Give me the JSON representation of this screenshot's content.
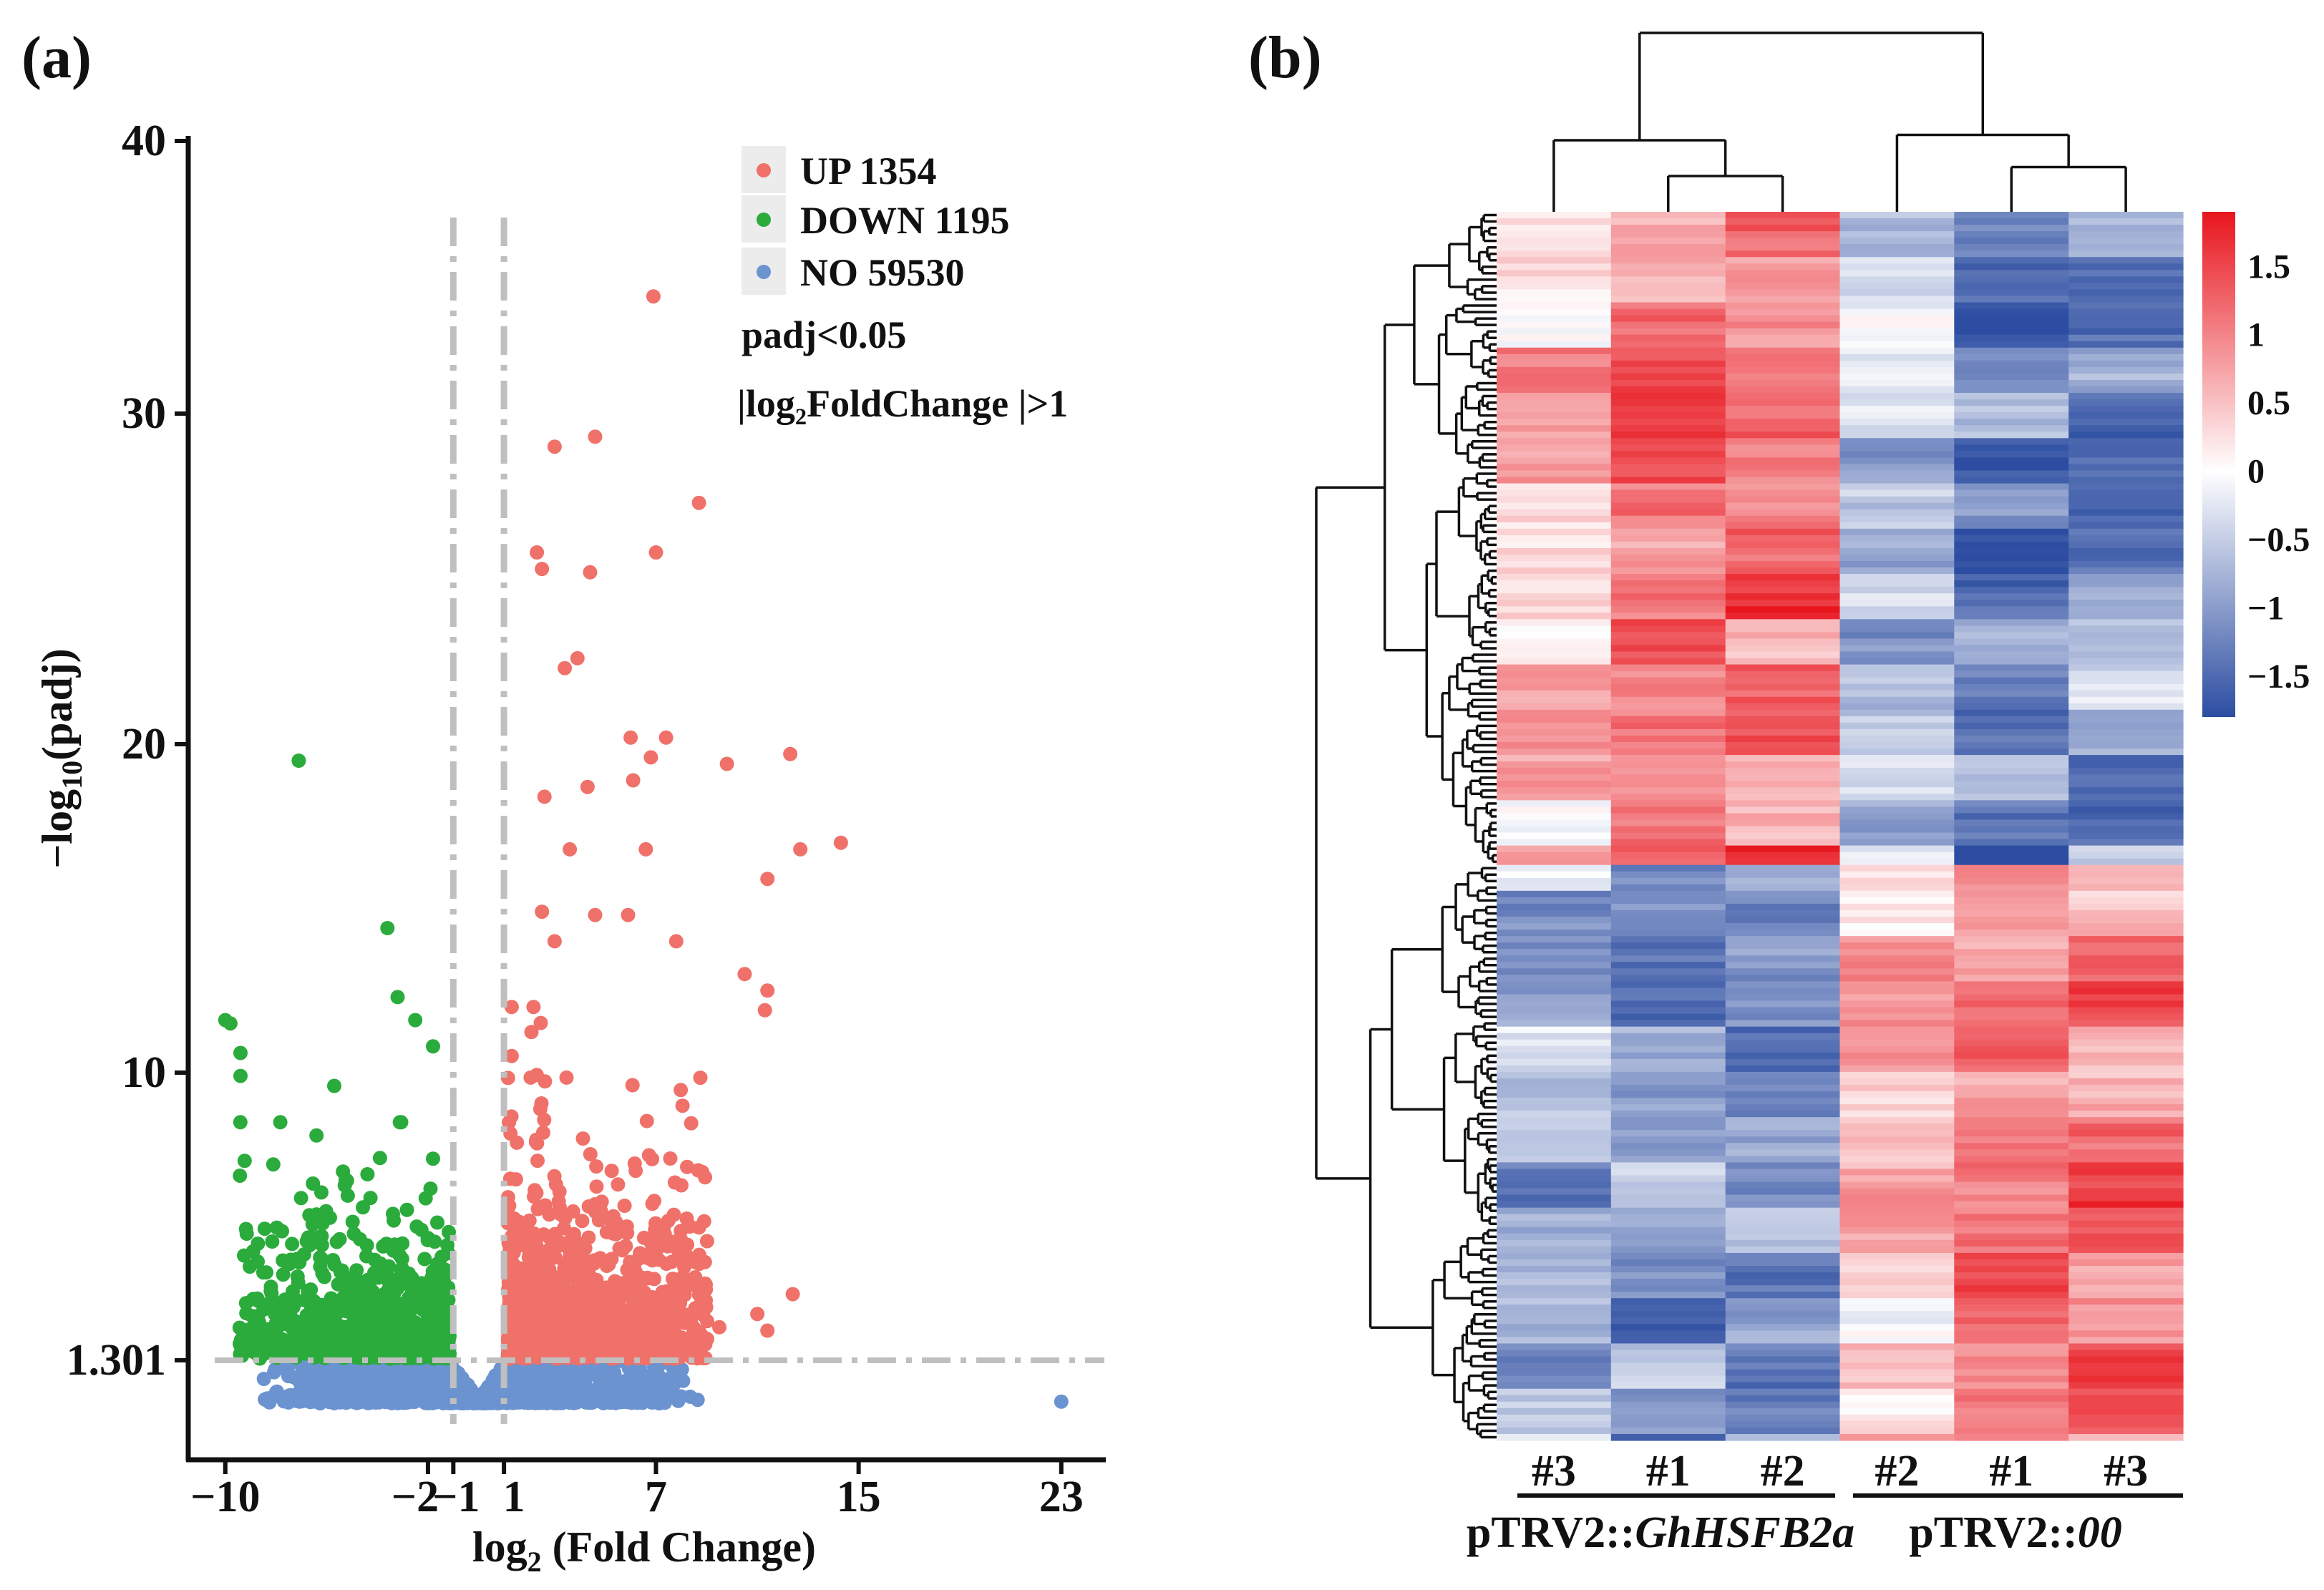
{
  "panels": {
    "a_label": "(a)",
    "b_label": "(b)"
  },
  "chart_data": [
    {
      "type": "scatter",
      "title": "",
      "xlabel": {
        "main": "log",
        "sub": "2",
        "rest": " (Fold Change)"
      },
      "ylabel": {
        "pre": "−log",
        "sub": "10",
        "post": "(padj)"
      },
      "xticks": [
        -10,
        -2,
        -1,
        1,
        7,
        15,
        23
      ],
      "xtick_labels": [
        "−10",
        "−2",
        "−1",
        "1",
        "7",
        "15",
        "23"
      ],
      "yticks": [
        1.301,
        10,
        20,
        30,
        40
      ],
      "ytick_labels": [
        "1.301",
        "10",
        "20",
        "30",
        "40"
      ],
      "xlim": [
        -11.5,
        24.7
      ],
      "ylim": [
        -0.2,
        40
      ],
      "grid": false,
      "threshold_lines": {
        "padj_line": 1.301,
        "fold_change_lines": [
          -1,
          1
        ],
        "color": "#bfbfbf"
      },
      "legend": {
        "position": "top-right",
        "items": [
          {
            "key": "up",
            "label": "UP 1354",
            "color": "#ef7169"
          },
          {
            "key": "down",
            "label": "DOWN 1195",
            "color": "#2aab3c"
          },
          {
            "key": "no",
            "label": "NO 59530",
            "color": "#6b93d0"
          }
        ],
        "notes": [
          "padj<0.05",
          "|log₂FoldChange |>1"
        ]
      },
      "series": [
        {
          "name": "UP",
          "count": 1354,
          "color": "#ef7169",
          "outliers": [
            [
              3.0,
              29.0
            ],
            [
              4.6,
              29.3
            ],
            [
              6.9,
              34.3
            ],
            [
              8.7,
              27.3
            ],
            [
              2.3,
              25.8
            ],
            [
              2.5,
              25.3
            ],
            [
              7.0,
              25.8
            ],
            [
              4.4,
              25.2
            ],
            [
              3.9,
              22.6
            ],
            [
              3.4,
              22.3
            ],
            [
              6.0,
              20.2
            ],
            [
              7.4,
              20.2
            ],
            [
              6.8,
              19.6
            ],
            [
              9.8,
              19.4
            ],
            [
              12.3,
              19.7
            ],
            [
              2.6,
              18.4
            ],
            [
              4.3,
              18.7
            ],
            [
              6.1,
              18.9
            ],
            [
              3.6,
              16.8
            ],
            [
              6.6,
              16.8
            ],
            [
              14.3,
              17.0
            ],
            [
              12.7,
              16.8
            ],
            [
              11.4,
              15.9
            ],
            [
              2.5,
              14.9
            ],
            [
              3.0,
              14.0
            ],
            [
              4.6,
              14.8
            ],
            [
              5.9,
              14.8
            ],
            [
              7.8,
              14.0
            ],
            [
              10.5,
              13.0
            ],
            [
              11.4,
              12.5
            ],
            [
              11.3,
              11.9
            ],
            [
              12.4,
              3.3
            ],
            [
              11.0,
              2.7
            ],
            [
              11.4,
              2.2
            ],
            [
              9.5,
              2.3
            ]
          ]
        },
        {
          "name": "DOWN",
          "count": 1195,
          "color": "#2aab3c",
          "outliers": [
            [
              -7.1,
              19.5
            ],
            [
              -3.6,
              14.4
            ],
            [
              -3.2,
              12.3
            ],
            [
              -2.5,
              11.6
            ],
            [
              -1.8,
              10.8
            ],
            [
              -10.0,
              11.6
            ],
            [
              -9.8,
              11.5
            ],
            [
              -9.4,
              10.6
            ],
            [
              -9.4,
              9.9
            ],
            [
              -5.7,
              9.6
            ],
            [
              -6.4,
              8.1
            ],
            [
              -1.8,
              7.4
            ]
          ]
        },
        {
          "name": "NO",
          "count": 59530,
          "color": "#6b93d0",
          "outliers": [
            [
              23.0,
              0.05
            ]
          ]
        }
      ]
    },
    {
      "type": "heatmap",
      "columns": [
        {
          "label": "#3",
          "group": 0
        },
        {
          "label": "#1",
          "group": 0
        },
        {
          "label": "#2",
          "group": 0
        },
        {
          "label": "#2",
          "group": 1
        },
        {
          "label": "#1",
          "group": 1
        },
        {
          "label": "#3",
          "group": 1
        }
      ],
      "groups": [
        {
          "prefix": "pTRV2::",
          "italic": "GhHSFB2a"
        },
        {
          "prefix": "pTRV2::",
          "italic": "00"
        }
      ],
      "row_clusters": [
        {
          "fraction": 0.533,
          "column_means": [
            0.55,
            1.1,
            1.2,
            -0.6,
            -1.25,
            -0.9
          ]
        },
        {
          "fraction": 0.467,
          "column_means": [
            -0.75,
            -1.05,
            -0.95,
            0.45,
            1.25,
            1.05
          ]
        }
      ],
      "column_dendrogram": [
        {
          "id": "m0",
          "left": 1,
          "right": 2,
          "height": 0.2
        },
        {
          "id": "m1",
          "left": 0,
          "right": "m0",
          "height": 0.4
        },
        {
          "id": "m2",
          "left": 4,
          "right": 5,
          "height": 0.25
        },
        {
          "id": "m3",
          "left": 3,
          "right": "m2",
          "height": 0.43
        },
        {
          "id": "m4",
          "left": "m1",
          "right": "m3",
          "height": 1.0
        }
      ],
      "colorbar": {
        "range": [
          -1.8,
          1.9
        ],
        "colors": {
          "low": "#2c4da1",
          "mid": "#ffffff",
          "high": "#e8151d"
        },
        "ticks": [
          {
            "value": 1.5,
            "label": "1.5"
          },
          {
            "value": 1,
            "label": "1"
          },
          {
            "value": 0.5,
            "label": "0.5"
          },
          {
            "value": 0,
            "label": "0"
          },
          {
            "value": -0.5,
            "label": "−0.5"
          },
          {
            "value": -1,
            "label": "−1"
          },
          {
            "value": -1.5,
            "label": "−1.5"
          }
        ]
      }
    }
  ]
}
